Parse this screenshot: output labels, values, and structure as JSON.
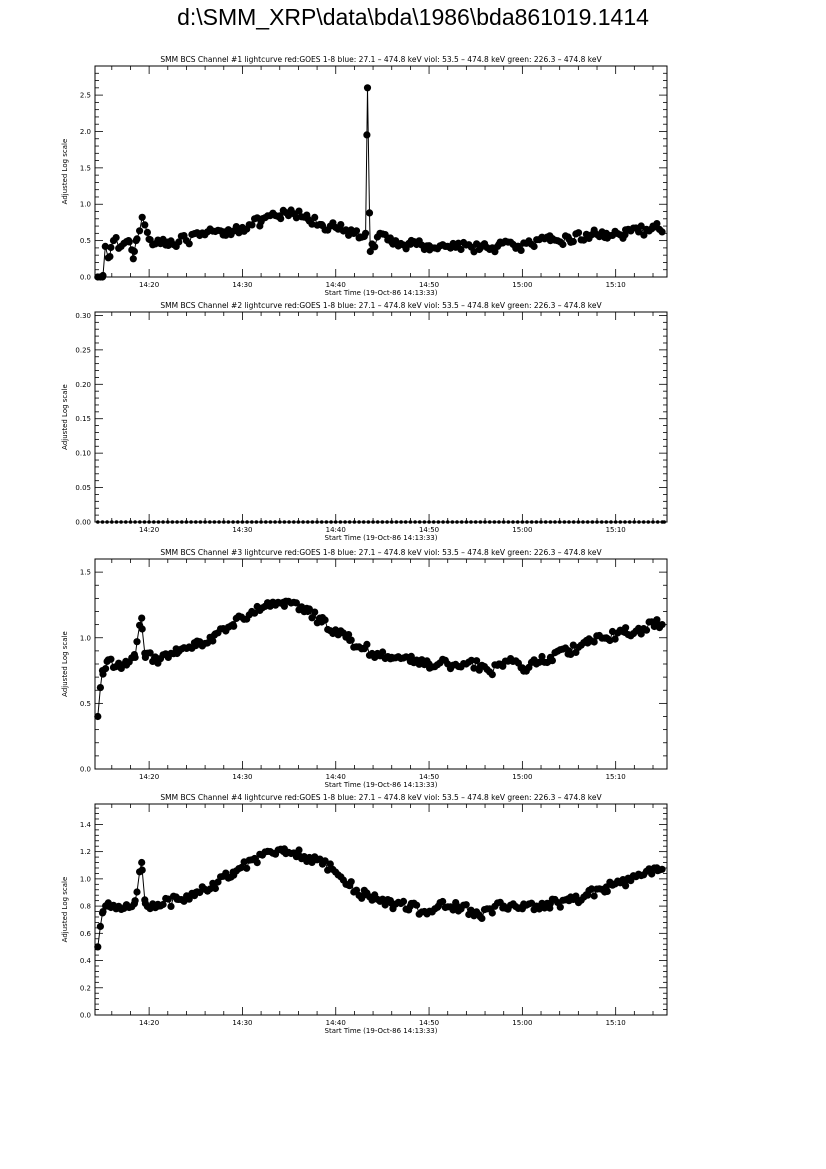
{
  "page": {
    "title": "d:\\SMM_XRP\\data\\bda\\1986\\bda861019.1414"
  },
  "chart_data": [
    {
      "type": "line",
      "title": "SMM BCS Channel #1 lightcurve  red:GOES 1-8  blue: 27.1 – 474.8 keV  viol: 53.5 – 474.8 keV  green: 226.3 – 474.8 keV",
      "xlabel": "Start Time (19-Oct-86 14:13:33)",
      "ylabel": "Adjusted Log scale",
      "xlim": [
        14.2,
        75.5
      ],
      "ylim": [
        0,
        2.9
      ],
      "x_ticks": [
        20,
        30,
        40,
        50,
        60,
        70
      ],
      "x_tick_labels": [
        "14:20",
        "14:30",
        "14:40",
        "14:50",
        "15:00",
        "15:10"
      ],
      "y_ticks": [
        0,
        0.5,
        1.0,
        1.5,
        2.0,
        2.5
      ],
      "y_tick_labels": [
        "0.0",
        "0.5",
        "1.0",
        "1.5",
        "2.0",
        "2.5"
      ],
      "grid": false,
      "marker": "filled-circle",
      "anchors": [
        [
          14.5,
          0.0
        ],
        [
          15.0,
          0.0
        ],
        [
          15.3,
          0.42
        ],
        [
          15.8,
          0.28
        ],
        [
          16.2,
          0.5
        ],
        [
          17,
          0.42
        ],
        [
          17.8,
          0.5
        ],
        [
          18.3,
          0.25
        ],
        [
          18.6,
          0.5
        ],
        [
          19.3,
          0.82
        ],
        [
          20,
          0.52
        ],
        [
          22,
          0.48
        ],
        [
          24,
          0.5
        ],
        [
          26,
          0.58
        ],
        [
          28,
          0.62
        ],
        [
          30,
          0.68
        ],
        [
          32,
          0.76
        ],
        [
          34,
          0.84
        ],
        [
          35.5,
          0.87
        ],
        [
          37,
          0.8
        ],
        [
          38.5,
          0.72
        ],
        [
          40,
          0.68
        ],
        [
          41.5,
          0.6
        ],
        [
          42.6,
          0.55
        ],
        [
          43.2,
          0.6
        ],
        [
          43.4,
          2.6
        ],
        [
          43.7,
          0.35
        ],
        [
          44.5,
          0.55
        ],
        [
          46,
          0.48
        ],
        [
          48,
          0.45
        ],
        [
          50,
          0.43
        ],
        [
          52,
          0.42
        ],
        [
          54,
          0.44
        ],
        [
          55.5,
          0.4
        ],
        [
          56.5,
          0.38
        ],
        [
          57.5,
          0.45
        ],
        [
          59.5,
          0.42
        ],
        [
          61,
          0.45
        ],
        [
          63,
          0.5
        ],
        [
          65,
          0.52
        ],
        [
          67,
          0.57
        ],
        [
          69,
          0.6
        ],
        [
          71,
          0.58
        ],
        [
          72.5,
          0.62
        ],
        [
          74,
          0.7
        ],
        [
          75,
          0.62
        ]
      ]
    },
    {
      "type": "line",
      "title": "SMM BCS Channel #2 lightcurve  red:GOES 1-8  blue: 27.1 – 474.8 keV  viol: 53.5 – 474.8 keV  green: 226.3 – 474.8 keV",
      "xlabel": "Start Time (19-Oct-86 14:13:33)",
      "ylabel": "Adjusted Log scale",
      "xlim": [
        14.2,
        75.5
      ],
      "ylim": [
        0,
        0.305
      ],
      "x_ticks": [
        20,
        30,
        40,
        50,
        60,
        70
      ],
      "x_tick_labels": [
        "14:20",
        "14:30",
        "14:40",
        "14:50",
        "15:00",
        "15:10"
      ],
      "y_ticks": [
        0,
        0.05,
        0.1,
        0.15,
        0.2,
        0.25,
        0.3
      ],
      "y_tick_labels": [
        "0.00",
        "0.05",
        "0.10",
        "0.15",
        "0.20",
        "0.25",
        "0.30"
      ],
      "grid": false,
      "marker": "filled-circle",
      "anchors": [
        [
          14.5,
          0.0
        ],
        [
          75.2,
          0.0
        ]
      ]
    },
    {
      "type": "line",
      "title": "SMM BCS Channel #3 lightcurve  red:GOES 1-8  blue: 27.1 – 474.8 keV  viol: 53.5 – 474.8 keV  green: 226.3 – 474.8 keV",
      "xlabel": "Start Time (19-Oct-86 14:13:33)",
      "ylabel": "Adjusted Log scale",
      "xlim": [
        14.2,
        75.5
      ],
      "ylim": [
        0,
        1.6
      ],
      "x_ticks": [
        20,
        30,
        40,
        50,
        60,
        70
      ],
      "x_tick_labels": [
        "14:20",
        "14:30",
        "14:40",
        "14:50",
        "15:00",
        "15:10"
      ],
      "y_ticks": [
        0,
        0.5,
        1.0,
        1.5
      ],
      "y_tick_labels": [
        "0.0",
        "0.5",
        "1.0",
        "1.5"
      ],
      "grid": false,
      "marker": "filled-circle",
      "anchors": [
        [
          14.5,
          0.4
        ],
        [
          15.0,
          0.75
        ],
        [
          15.5,
          0.82
        ],
        [
          16.5,
          0.78
        ],
        [
          17.5,
          0.82
        ],
        [
          18.5,
          0.85
        ],
        [
          19.2,
          1.15
        ],
        [
          19.6,
          0.85
        ],
        [
          21,
          0.84
        ],
        [
          23,
          0.88
        ],
        [
          25,
          0.94
        ],
        [
          27,
          1.02
        ],
        [
          29,
          1.1
        ],
        [
          31,
          1.2
        ],
        [
          33,
          1.24
        ],
        [
          34.5,
          1.24
        ],
        [
          35.5,
          1.27
        ],
        [
          37,
          1.2
        ],
        [
          38.5,
          1.12
        ],
        [
          40,
          1.06
        ],
        [
          41.5,
          0.98
        ],
        [
          43,
          0.92
        ],
        [
          44.5,
          0.88
        ],
        [
          46,
          0.85
        ],
        [
          48,
          0.82
        ],
        [
          50,
          0.8
        ],
        [
          52,
          0.8
        ],
        [
          54,
          0.8
        ],
        [
          55.5,
          0.78
        ],
        [
          56.5,
          0.74
        ],
        [
          57.5,
          0.8
        ],
        [
          59,
          0.82
        ],
        [
          60,
          0.77
        ],
        [
          61.5,
          0.8
        ],
        [
          63,
          0.85
        ],
        [
          65,
          0.9
        ],
        [
          67,
          0.96
        ],
        [
          69,
          1.0
        ],
        [
          71,
          1.04
        ],
        [
          73,
          1.07
        ],
        [
          74.5,
          1.1
        ],
        [
          75,
          1.1
        ]
      ]
    },
    {
      "type": "line",
      "title": "SMM BCS Channel #4 lightcurve  red:GOES 1-8  blue: 27.1 – 474.8 keV  viol: 53.5 – 474.8 keV  green: 226.3 – 474.8 keV",
      "xlabel": "Start Time (19-Oct-86 14:13:33)",
      "ylabel": "Adjusted Log scale",
      "xlim": [
        14.2,
        75.5
      ],
      "ylim": [
        0,
        1.55
      ],
      "x_ticks": [
        20,
        30,
        40,
        50,
        60,
        70
      ],
      "x_tick_labels": [
        "14:20",
        "14:30",
        "14:40",
        "14:50",
        "15:00",
        "15:10"
      ],
      "y_ticks": [
        0,
        0.2,
        0.4,
        0.6,
        0.8,
        1.0,
        1.2,
        1.4
      ],
      "y_tick_labels": [
        "0.0",
        "0.2",
        "0.4",
        "0.6",
        "0.8",
        "1.0",
        "1.2",
        "1.4"
      ],
      "grid": false,
      "marker": "filled-circle",
      "anchors": [
        [
          14.5,
          0.5
        ],
        [
          15.0,
          0.75
        ],
        [
          15.5,
          0.8
        ],
        [
          16.5,
          0.78
        ],
        [
          17.5,
          0.8
        ],
        [
          18.5,
          0.84
        ],
        [
          19.2,
          1.12
        ],
        [
          19.6,
          0.82
        ],
        [
          21,
          0.8
        ],
        [
          23,
          0.85
        ],
        [
          25,
          0.9
        ],
        [
          27,
          0.96
        ],
        [
          29,
          1.05
        ],
        [
          31,
          1.14
        ],
        [
          33,
          1.2
        ],
        [
          34.5,
          1.22
        ],
        [
          36,
          1.18
        ],
        [
          38,
          1.14
        ],
        [
          40,
          1.05
        ],
        [
          41.5,
          0.95
        ],
        [
          43,
          0.88
        ],
        [
          44.5,
          0.85
        ],
        [
          46,
          0.82
        ],
        [
          48,
          0.8
        ],
        [
          49.5,
          0.76
        ],
        [
          51,
          0.8
        ],
        [
          53,
          0.8
        ],
        [
          54.5,
          0.77
        ],
        [
          55.5,
          0.72
        ],
        [
          56.5,
          0.78
        ],
        [
          58,
          0.8
        ],
        [
          60,
          0.78
        ],
        [
          61.5,
          0.8
        ],
        [
          63,
          0.82
        ],
        [
          65,
          0.84
        ],
        [
          67,
          0.88
        ],
        [
          69,
          0.94
        ],
        [
          71,
          0.98
        ],
        [
          73,
          1.03
        ],
        [
          74.5,
          1.06
        ],
        [
          75,
          1.07
        ]
      ]
    }
  ]
}
